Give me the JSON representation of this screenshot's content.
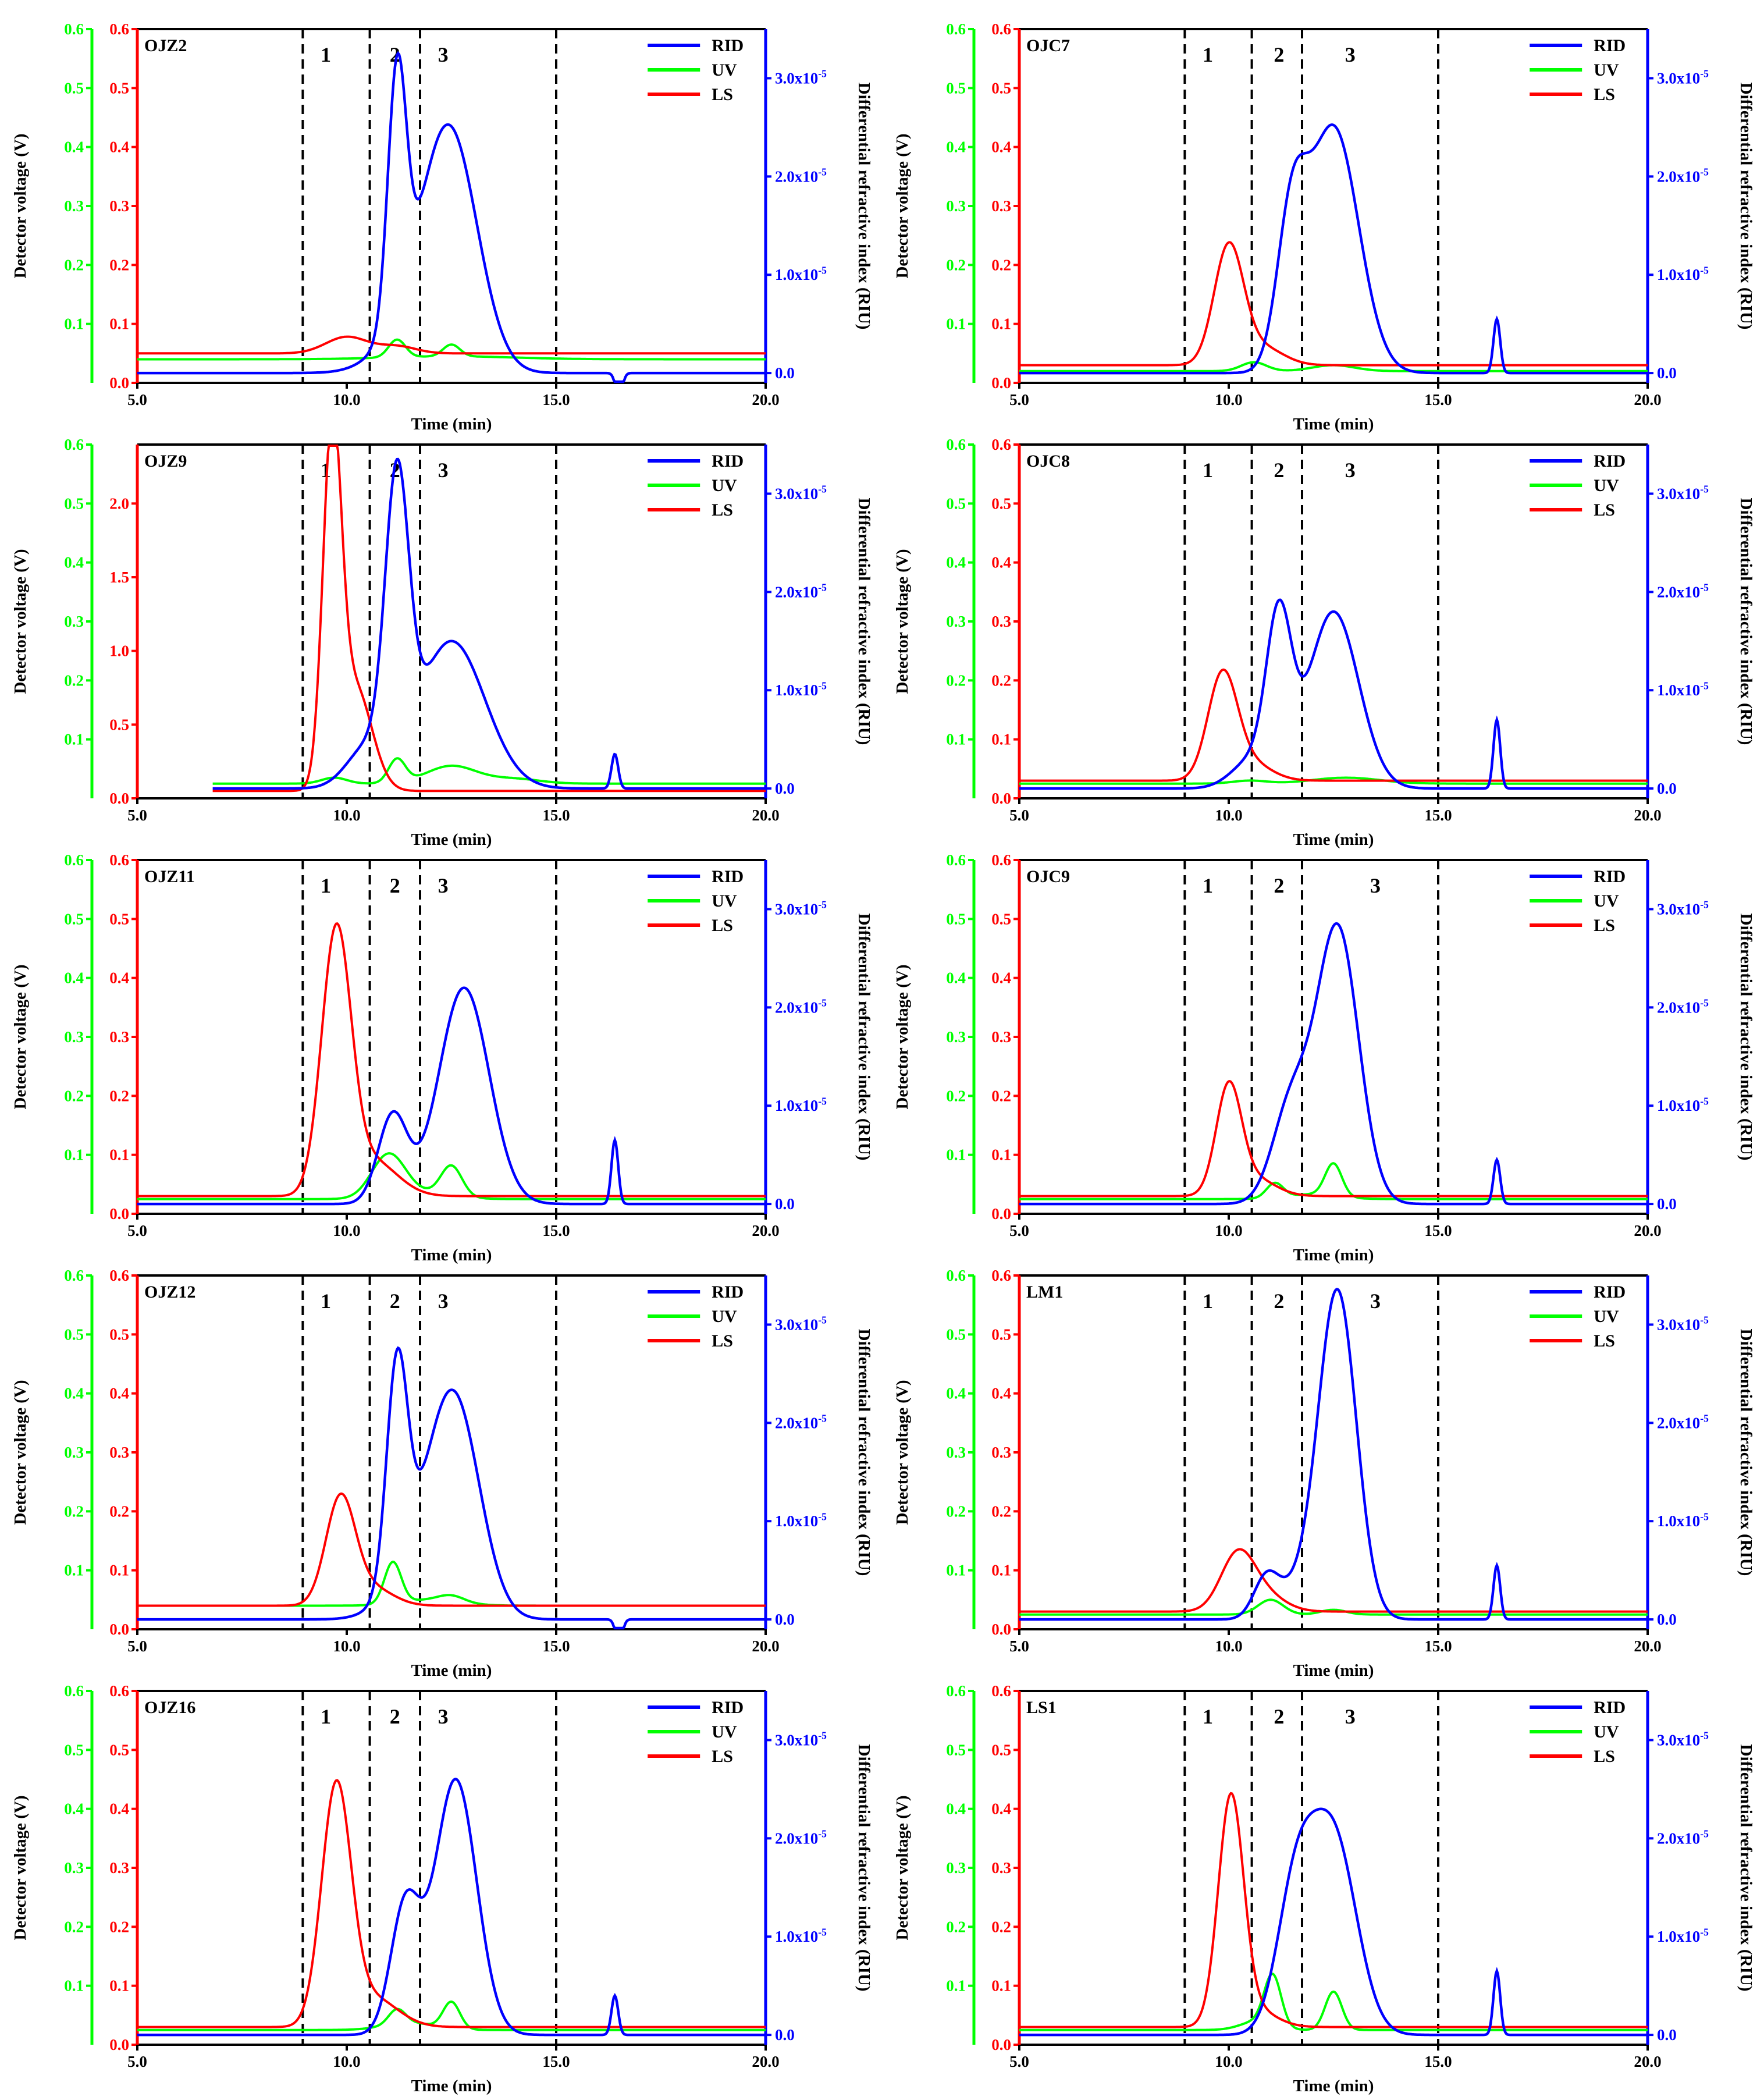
{
  "common": {
    "x_axis_label": "Time (min)",
    "y_left_label": "Detector voltage (V)",
    "y_right_label": "Differential refractive index (RIU)",
    "x_ticks": [
      "5.0",
      "10.0",
      "15.0",
      "20.0"
    ],
    "x_tick_values": [
      5,
      10,
      15,
      20
    ],
    "xlim": [
      5,
      20
    ],
    "uv_ticks": [
      "0.1",
      "0.2",
      "0.3",
      "0.4",
      "0.5",
      "0.6"
    ],
    "uv_tick_values": [
      0.1,
      0.2,
      0.3,
      0.4,
      0.5,
      0.6
    ],
    "ls_ticks_default": [
      "0.0",
      "0.1",
      "0.2",
      "0.3",
      "0.4",
      "0.5",
      "0.6"
    ],
    "ls_tick_values_default": [
      0,
      0.1,
      0.2,
      0.3,
      0.4,
      0.5,
      0.6
    ],
    "rid_ticks": [
      "0.0",
      "1.0x10-5",
      "2.0x10-5",
      "3.0x10-5"
    ],
    "rid_tick_values": [
      0,
      1e-05,
      2e-05,
      3e-05
    ],
    "rid_lim": [
      -1e-06,
      3.5e-05
    ],
    "region_boundaries": [
      8.95,
      10.55,
      11.75,
      15.0
    ],
    "region_labels": [
      "1",
      "2",
      "3"
    ],
    "legend": [
      "RID",
      "UV",
      "LS"
    ],
    "colors": {
      "RID": "#0000ff",
      "UV": "#00ff00",
      "LS": "#ff0000",
      "boundary": "#000000"
    }
  },
  "chart_data": [
    {
      "name": "OJZ2",
      "type": "line",
      "ls_lim": [
        0,
        0.6
      ],
      "ls_ticks": "default",
      "ls": {
        "base": 0.05,
        "peaks": [
          [
            10.0,
            0.028,
            0.5
          ],
          [
            11.2,
            0.012,
            0.45
          ]
        ]
      },
      "uv": {
        "base": 0.04,
        "peaks": [
          [
            11.2,
            0.03,
            0.2
          ],
          [
            12.5,
            0.02,
            0.2
          ],
          [
            12.5,
            0.005,
            1.5
          ]
        ]
      },
      "rid": {
        "base": 0.0,
        "peaks": [
          [
            11.2,
            2.5e-05,
            0.22
          ],
          [
            12.5,
            2.1e-05,
            0.65
          ],
          [
            11.8,
            6e-06,
            0.8
          ],
          [
            16.5,
            -2.5e-06,
            0.08
          ]
        ]
      },
      "region_label_x": [
        9.5,
        11.15,
        12.3
      ]
    },
    {
      "name": "OJC7",
      "type": "line",
      "ls_lim": [
        0,
        0.6
      ],
      "ls_ticks": "default",
      "ls": {
        "base": 0.03,
        "peaks": [
          [
            10.0,
            0.2,
            0.35
          ],
          [
            10.8,
            0.03,
            0.5
          ]
        ]
      },
      "uv": {
        "base": 0.02,
        "peaks": [
          [
            10.6,
            0.015,
            0.3
          ],
          [
            12.5,
            0.01,
            0.5
          ]
        ]
      },
      "rid": {
        "base": 0.0,
        "peaks": [
          [
            11.5,
            1.4e-05,
            0.35
          ],
          [
            12.5,
            2.5e-05,
            0.6
          ],
          [
            16.4,
            5.5e-06,
            0.08
          ]
        ]
      },
      "region_label_x": [
        9.5,
        11.2,
        12.9
      ]
    },
    {
      "name": "OJZ9",
      "type": "line",
      "ls_lim": [
        0,
        2.4
      ],
      "ls_ticks": "ojz9",
      "ls": {
        "base": 0.05,
        "peaks": [
          [
            9.65,
            2.33,
            0.22
          ],
          [
            10.2,
            0.7,
            0.4
          ]
        ]
      },
      "uv": {
        "base": 0.025,
        "peaks": [
          [
            9.7,
            0.01,
            0.3
          ],
          [
            11.2,
            0.04,
            0.2
          ],
          [
            12.5,
            0.03,
            0.6
          ],
          [
            14.0,
            0.008,
            0.6
          ]
        ]
      },
      "rid": {
        "base": 0.0,
        "peaks": [
          [
            11.2,
            2.8e-05,
            0.28
          ],
          [
            12.5,
            1.5e-05,
            0.8
          ],
          [
            10.5,
            4e-06,
            0.5
          ],
          [
            16.4,
            3.5e-06,
            0.08
          ]
        ]
      },
      "x_start": 6.8,
      "region_label_x": [
        9.5,
        11.15,
        12.3
      ]
    },
    {
      "name": "OJC8",
      "type": "line",
      "ls_lim": [
        0,
        0.6
      ],
      "ls_ticks": "default",
      "ls": {
        "base": 0.03,
        "peaks": [
          [
            9.85,
            0.175,
            0.35
          ],
          [
            10.5,
            0.03,
            0.5
          ]
        ]
      },
      "uv": {
        "base": 0.025,
        "peaks": [
          [
            10.5,
            0.005,
            0.4
          ],
          [
            12.8,
            0.01,
            0.8
          ]
        ]
      },
      "rid": {
        "base": 0.0,
        "peaks": [
          [
            11.2,
            1.6e-05,
            0.3
          ],
          [
            12.5,
            1.8e-05,
            0.6
          ],
          [
            10.6,
            3e-06,
            0.5
          ],
          [
            16.4,
            7e-06,
            0.08
          ]
        ]
      },
      "region_label_x": [
        9.5,
        11.2,
        12.9
      ]
    },
    {
      "name": "OJZ11",
      "type": "line",
      "ls_lim": [
        0,
        0.6
      ],
      "ls_ticks": "default",
      "ls": {
        "base": 0.03,
        "peaks": [
          [
            9.75,
            0.44,
            0.35
          ],
          [
            10.6,
            0.06,
            0.6
          ]
        ]
      },
      "uv": {
        "base": 0.025,
        "peaks": [
          [
            11.0,
            0.075,
            0.4
          ],
          [
            12.5,
            0.05,
            0.25
          ],
          [
            12.0,
            0.01,
            0.6
          ]
        ]
      },
      "rid": {
        "base": 0.0,
        "peaks": [
          [
            11.1,
            9e-06,
            0.35
          ],
          [
            12.8,
            2.2e-05,
            0.6
          ],
          [
            16.4,
            6.5e-06,
            0.08
          ]
        ]
      },
      "region_label_x": [
        9.5,
        11.15,
        12.3
      ]
    },
    {
      "name": "OJC9",
      "type": "line",
      "ls_lim": [
        0,
        0.6
      ],
      "ls_ticks": "default",
      "ls": {
        "base": 0.03,
        "peaks": [
          [
            10.0,
            0.18,
            0.3
          ],
          [
            10.6,
            0.03,
            0.5
          ]
        ]
      },
      "uv": {
        "base": 0.025,
        "peaks": [
          [
            11.1,
            0.025,
            0.2
          ],
          [
            12.5,
            0.055,
            0.2
          ],
          [
            12.0,
            0.008,
            0.6
          ]
        ]
      },
      "rid": {
        "base": 0.0,
        "peaks": [
          [
            11.5,
            1e-05,
            0.45
          ],
          [
            12.6,
            2.8e-05,
            0.5
          ],
          [
            16.4,
            4.5e-06,
            0.08
          ]
        ]
      },
      "region_label_x": [
        9.5,
        11.2,
        13.5
      ]
    },
    {
      "name": "OJZ12",
      "type": "line",
      "ls_lim": [
        0,
        0.6
      ],
      "ls_ticks": "default",
      "ls": {
        "base": 0.04,
        "peaks": [
          [
            9.85,
            0.18,
            0.35
          ],
          [
            10.6,
            0.03,
            0.5
          ]
        ]
      },
      "uv": {
        "base": 0.04,
        "peaks": [
          [
            11.1,
            0.07,
            0.2
          ],
          [
            12.5,
            0.01,
            0.3
          ],
          [
            12.0,
            0.01,
            0.7
          ]
        ]
      },
      "rid": {
        "base": 0.0,
        "peaks": [
          [
            11.2,
            2.2e-05,
            0.25
          ],
          [
            12.6,
            2e-05,
            0.6
          ],
          [
            11.8,
            6e-06,
            0.7
          ],
          [
            16.5,
            -2.5e-06,
            0.08
          ]
        ]
      },
      "region_label_x": [
        9.5,
        11.15,
        12.3
      ]
    },
    {
      "name": "LM1",
      "type": "line",
      "ls_lim": [
        0,
        0.6
      ],
      "ls_ticks": "default",
      "ls": {
        "base": 0.03,
        "peaks": [
          [
            10.2,
            0.09,
            0.4
          ],
          [
            10.8,
            0.03,
            0.5
          ]
        ]
      },
      "uv": {
        "base": 0.025,
        "peaks": [
          [
            11.0,
            0.025,
            0.3
          ],
          [
            12.5,
            0.008,
            0.3
          ]
        ]
      },
      "rid": {
        "base": 0.0,
        "peaks": [
          [
            10.9,
            4e-06,
            0.3
          ],
          [
            12.6,
            3.3e-05,
            0.45
          ],
          [
            11.7,
            3e-06,
            0.5
          ],
          [
            16.4,
            5.5e-06,
            0.08
          ]
        ]
      },
      "region_label_x": [
        9.5,
        11.2,
        13.5
      ]
    },
    {
      "name": "OJZ16",
      "type": "line",
      "ls_lim": [
        0,
        0.6
      ],
      "ls_ticks": "default",
      "ls": {
        "base": 0.03,
        "peaks": [
          [
            9.75,
            0.4,
            0.35
          ],
          [
            10.6,
            0.05,
            0.6
          ]
        ]
      },
      "uv": {
        "base": 0.025,
        "peaks": [
          [
            11.2,
            0.025,
            0.2
          ],
          [
            12.5,
            0.045,
            0.2
          ],
          [
            11.5,
            0.012,
            0.6
          ]
        ]
      },
      "rid": {
        "base": 0.0,
        "peaks": [
          [
            11.4,
            1.3e-05,
            0.35
          ],
          [
            12.6,
            2.6e-05,
            0.5
          ],
          [
            16.4,
            4e-06,
            0.08
          ]
        ]
      },
      "region_label_x": [
        9.5,
        11.15,
        12.3
      ]
    },
    {
      "name": "LS1",
      "type": "line",
      "ls_lim": [
        0,
        0.6
      ],
      "ls_ticks": "default",
      "ls": {
        "base": 0.03,
        "peaks": [
          [
            10.05,
            0.38,
            0.3
          ],
          [
            10.6,
            0.03,
            0.5
          ]
        ]
      },
      "uv": {
        "base": 0.025,
        "peaks": [
          [
            11.05,
            0.085,
            0.2
          ],
          [
            12.5,
            0.065,
            0.2
          ],
          [
            10.7,
            0.015,
            0.4
          ]
        ]
      },
      "rid": {
        "base": 0.0,
        "peaks": [
          [
            11.6,
            1.4e-05,
            0.45
          ],
          [
            12.5,
            2e-05,
            0.55
          ],
          [
            16.4,
            6.5e-06,
            0.08
          ]
        ]
      },
      "region_label_x": [
        9.5,
        11.2,
        12.9
      ]
    }
  ],
  "ojz9_ls_ticks": [
    "0.0",
    "0.5",
    "1.0",
    "1.5",
    "2.0"
  ],
  "ojz9_ls_tick_values": [
    0,
    0.5,
    1.0,
    1.5,
    2.0
  ],
  "ojz9_uv_ticks": [
    "0.1",
    "0.2",
    "0.3",
    "0.4",
    "0.5",
    "0.6"
  ]
}
